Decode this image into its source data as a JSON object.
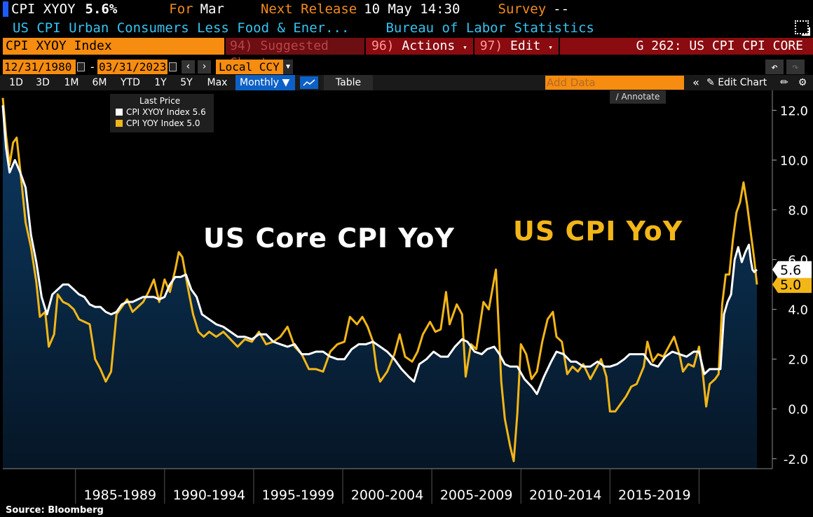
{
  "header": {
    "ticker": "CPI XYOY",
    "last_value": "5.6%",
    "for_label": "For",
    "for_value": "Mar",
    "next_release_label": "Next Release",
    "next_release_value": "10 May 14:30",
    "survey_label": "Survey",
    "survey_value": "--",
    "description": "US CPI Urban Consumers Less Food & Ener...",
    "source_name": "Bureau of Labor Statistics"
  },
  "toolbar": {
    "ticker_input": "CPI XYOY Index",
    "suggested_num": "94)",
    "suggested_label": "Suggested Charts",
    "actions_num": "96)",
    "actions_label": "Actions",
    "edit_num": "97)",
    "edit_label": "Edit",
    "page_title": "G 262: US CPI CPI CORE",
    "start_date": "12/31/1980",
    "end_date": "03/31/2023",
    "currency": "Local CCY",
    "ranges": [
      "1D",
      "3D",
      "1M",
      "6M",
      "YTD",
      "1Y",
      "5Y",
      "Max"
    ],
    "frequency": "Monthly",
    "table_label": "Table",
    "add_data_placeholder": "Add Data",
    "edit_chart_label": "Edit Chart",
    "annotate_label": "Annotate"
  },
  "legend": {
    "header": "Last Price",
    "items": [
      {
        "label": "CPI XYOY Index 5.6",
        "color": "#ffffff"
      },
      {
        "label": "CPI YOY Index  5.0",
        "color": "#f2b618"
      }
    ]
  },
  "overlay": {
    "core_title": "US Core CPI YoY",
    "cpi_title": "US CPI YoY"
  },
  "source": "Source: Bloomberg",
  "colors": {
    "core": "#ffffff",
    "headline": "#f2b618",
    "area_top": "#0c3a63",
    "area_bottom": "#061626",
    "orange": "#f68c10"
  },
  "chart_data": {
    "type": "line",
    "x_tick_labels": [
      "1985-1989",
      "1990-1994",
      "1995-1999",
      "2000-2004",
      "2005-2009",
      "2010-2014",
      "2015-2019"
    ],
    "y_tick_labels": [
      "-2.0",
      "0.0",
      "2.0",
      "4.0",
      "6.0",
      "8.0",
      "10.0",
      "12.0"
    ],
    "ylim": [
      -2.4,
      12.8
    ],
    "x_range": [
      1980.92,
      2023.25
    ],
    "series": [
      {
        "name": "CPI XYOY Index",
        "last": "5.6",
        "color": "#ffffff",
        "area": true,
        "points": [
          [
            1980.92,
            12.2
          ],
          [
            1981.1,
            10.5
          ],
          [
            1981.3,
            9.5
          ],
          [
            1981.6,
            10.0
          ],
          [
            1981.9,
            9.5
          ],
          [
            1982.2,
            8.9
          ],
          [
            1982.5,
            7.0
          ],
          [
            1982.8,
            5.9
          ],
          [
            1983.1,
            4.5
          ],
          [
            1983.4,
            3.8
          ],
          [
            1983.7,
            4.6
          ],
          [
            1984.0,
            4.8
          ],
          [
            1984.3,
            5.0
          ],
          [
            1984.6,
            5.0
          ],
          [
            1984.9,
            4.8
          ],
          [
            1985.2,
            4.6
          ],
          [
            1985.5,
            4.5
          ],
          [
            1985.8,
            4.2
          ],
          [
            1986.1,
            4.1
          ],
          [
            1986.4,
            4.1
          ],
          [
            1986.7,
            3.9
          ],
          [
            1987.0,
            3.8
          ],
          [
            1987.3,
            3.9
          ],
          [
            1987.6,
            4.2
          ],
          [
            1987.9,
            4.3
          ],
          [
            1988.2,
            4.3
          ],
          [
            1988.5,
            4.4
          ],
          [
            1988.8,
            4.5
          ],
          [
            1989.1,
            4.5
          ],
          [
            1989.4,
            4.5
          ],
          [
            1989.7,
            4.4
          ],
          [
            1990.0,
            4.5
          ],
          [
            1990.3,
            5.0
          ],
          [
            1990.6,
            5.3
          ],
          [
            1990.9,
            5.3
          ],
          [
            1991.2,
            5.4
          ],
          [
            1991.5,
            4.8
          ],
          [
            1991.8,
            4.5
          ],
          [
            1992.1,
            3.8
          ],
          [
            1992.5,
            3.6
          ],
          [
            1992.9,
            3.4
          ],
          [
            1993.3,
            3.3
          ],
          [
            1993.7,
            3.1
          ],
          [
            1994.1,
            2.9
          ],
          [
            1994.5,
            2.9
          ],
          [
            1994.9,
            2.8
          ],
          [
            1995.3,
            3.0
          ],
          [
            1995.7,
            3.0
          ],
          [
            1996.1,
            2.7
          ],
          [
            1996.5,
            2.6
          ],
          [
            1996.9,
            2.5
          ],
          [
            1997.3,
            2.6
          ],
          [
            1997.7,
            2.2
          ],
          [
            1998.1,
            2.2
          ],
          [
            1998.5,
            2.3
          ],
          [
            1998.9,
            2.3
          ],
          [
            1999.3,
            2.1
          ],
          [
            1999.7,
            2.0
          ],
          [
            2000.1,
            2.0
          ],
          [
            2000.5,
            2.4
          ],
          [
            2000.9,
            2.6
          ],
          [
            2001.3,
            2.6
          ],
          [
            2001.7,
            2.7
          ],
          [
            2002.1,
            2.5
          ],
          [
            2002.5,
            2.3
          ],
          [
            2002.9,
            2.0
          ],
          [
            2003.3,
            1.6
          ],
          [
            2003.7,
            1.3
          ],
          [
            2004.0,
            1.1
          ],
          [
            2004.3,
            1.8
          ],
          [
            2004.7,
            2.0
          ],
          [
            2005.1,
            2.3
          ],
          [
            2005.5,
            2.1
          ],
          [
            2005.9,
            2.1
          ],
          [
            2006.3,
            2.5
          ],
          [
            2006.7,
            2.8
          ],
          [
            2007.0,
            2.7
          ],
          [
            2007.4,
            2.3
          ],
          [
            2007.8,
            2.2
          ],
          [
            2008.1,
            2.4
          ],
          [
            2008.5,
            2.5
          ],
          [
            2008.8,
            2.2
          ],
          [
            2009.1,
            1.8
          ],
          [
            2009.4,
            1.7
          ],
          [
            2009.8,
            1.7
          ],
          [
            2010.2,
            1.2
          ],
          [
            2010.6,
            0.9
          ],
          [
            2010.9,
            0.6
          ],
          [
            2011.3,
            1.3
          ],
          [
            2011.7,
            1.9
          ],
          [
            2012.0,
            2.3
          ],
          [
            2012.4,
            2.2
          ],
          [
            2012.8,
            1.9
          ],
          [
            2013.1,
            1.9
          ],
          [
            2013.5,
            1.7
          ],
          [
            2013.9,
            1.7
          ],
          [
            2014.3,
            1.9
          ],
          [
            2014.7,
            1.7
          ],
          [
            2015.0,
            1.7
          ],
          [
            2015.4,
            1.8
          ],
          [
            2015.8,
            2.0
          ],
          [
            2016.1,
            2.2
          ],
          [
            2016.5,
            2.2
          ],
          [
            2016.9,
            2.2
          ],
          [
            2017.3,
            1.8
          ],
          [
            2017.7,
            1.7
          ],
          [
            2018.1,
            2.1
          ],
          [
            2018.5,
            2.3
          ],
          [
            2018.9,
            2.2
          ],
          [
            2019.3,
            2.1
          ],
          [
            2019.7,
            2.3
          ],
          [
            2020.0,
            2.3
          ],
          [
            2020.3,
            1.4
          ],
          [
            2020.6,
            1.6
          ],
          [
            2020.9,
            1.6
          ],
          [
            2021.2,
            1.6
          ],
          [
            2021.4,
            3.8
          ],
          [
            2021.6,
            4.3
          ],
          [
            2021.8,
            4.6
          ],
          [
            2022.0,
            6.0
          ],
          [
            2022.2,
            6.5
          ],
          [
            2022.4,
            5.9
          ],
          [
            2022.6,
            6.3
          ],
          [
            2022.8,
            6.6
          ],
          [
            2022.9,
            6.0
          ],
          [
            2023.0,
            5.6
          ],
          [
            2023.1,
            5.5
          ],
          [
            2023.25,
            5.6
          ]
        ]
      },
      {
        "name": "CPI YOY Index",
        "last": "5.0",
        "color": "#f2b618",
        "area": false,
        "points": [
          [
            1980.92,
            12.5
          ],
          [
            1981.1,
            11.0
          ],
          [
            1981.3,
            9.8
          ],
          [
            1981.5,
            10.7
          ],
          [
            1981.7,
            10.9
          ],
          [
            1981.9,
            9.6
          ],
          [
            1982.2,
            7.5
          ],
          [
            1982.5,
            6.5
          ],
          [
            1982.8,
            5.1
          ],
          [
            1983.0,
            3.7
          ],
          [
            1983.3,
            3.9
          ],
          [
            1983.5,
            2.5
          ],
          [
            1983.8,
            3.0
          ],
          [
            1984.0,
            4.6
          ],
          [
            1984.3,
            4.3
          ],
          [
            1984.6,
            4.2
          ],
          [
            1984.9,
            4.0
          ],
          [
            1985.2,
            3.6
          ],
          [
            1985.5,
            3.5
          ],
          [
            1985.8,
            3.4
          ],
          [
            1986.1,
            2.0
          ],
          [
            1986.4,
            1.6
          ],
          [
            1986.7,
            1.1
          ],
          [
            1987.0,
            1.5
          ],
          [
            1987.3,
            3.8
          ],
          [
            1987.6,
            4.1
          ],
          [
            1987.9,
            4.4
          ],
          [
            1988.2,
            3.9
          ],
          [
            1988.5,
            4.1
          ],
          [
            1988.8,
            4.3
          ],
          [
            1989.1,
            4.7
          ],
          [
            1989.4,
            5.2
          ],
          [
            1989.7,
            4.3
          ],
          [
            1990.0,
            5.2
          ],
          [
            1990.3,
            4.7
          ],
          [
            1990.6,
            5.6
          ],
          [
            1990.8,
            6.3
          ],
          [
            1991.0,
            6.1
          ],
          [
            1991.3,
            4.9
          ],
          [
            1991.6,
            3.8
          ],
          [
            1991.9,
            3.1
          ],
          [
            1992.2,
            2.9
          ],
          [
            1992.5,
            3.1
          ],
          [
            1992.9,
            2.9
          ],
          [
            1993.3,
            3.1
          ],
          [
            1993.7,
            2.8
          ],
          [
            1994.1,
            2.5
          ],
          [
            1994.5,
            2.8
          ],
          [
            1994.9,
            2.7
          ],
          [
            1995.3,
            3.1
          ],
          [
            1995.7,
            2.6
          ],
          [
            1996.1,
            2.7
          ],
          [
            1996.5,
            2.9
          ],
          [
            1996.9,
            3.3
          ],
          [
            1997.3,
            2.5
          ],
          [
            1997.7,
            2.2
          ],
          [
            1998.1,
            1.6
          ],
          [
            1998.5,
            1.6
          ],
          [
            1998.9,
            1.5
          ],
          [
            1999.3,
            2.3
          ],
          [
            1999.7,
            2.6
          ],
          [
            2000.1,
            2.7
          ],
          [
            2000.4,
            3.7
          ],
          [
            2000.8,
            3.4
          ],
          [
            2001.1,
            3.7
          ],
          [
            2001.4,
            3.3
          ],
          [
            2001.7,
            2.7
          ],
          [
            2001.9,
            1.6
          ],
          [
            2002.1,
            1.1
          ],
          [
            2002.5,
            1.5
          ],
          [
            2002.9,
            2.2
          ],
          [
            2003.2,
            3.0
          ],
          [
            2003.5,
            2.1
          ],
          [
            2003.9,
            1.9
          ],
          [
            2004.2,
            2.3
          ],
          [
            2004.5,
            3.0
          ],
          [
            2004.9,
            3.5
          ],
          [
            2005.2,
            3.1
          ],
          [
            2005.5,
            3.2
          ],
          [
            2005.8,
            4.7
          ],
          [
            2006.0,
            3.4
          ],
          [
            2006.4,
            4.2
          ],
          [
            2006.7,
            3.8
          ],
          [
            2006.9,
            1.3
          ],
          [
            2007.2,
            2.6
          ],
          [
            2007.5,
            2.4
          ],
          [
            2007.9,
            4.3
          ],
          [
            2008.2,
            4.0
          ],
          [
            2008.6,
            5.6
          ],
          [
            2008.9,
            1.1
          ],
          [
            2009.1,
            -0.4
          ],
          [
            2009.4,
            -1.5
          ],
          [
            2009.6,
            -2.1
          ],
          [
            2009.8,
            -0.2
          ],
          [
            2010.0,
            2.6
          ],
          [
            2010.3,
            2.2
          ],
          [
            2010.6,
            1.2
          ],
          [
            2010.9,
            1.5
          ],
          [
            2011.2,
            2.7
          ],
          [
            2011.5,
            3.6
          ],
          [
            2011.8,
            3.9
          ],
          [
            2012.0,
            2.9
          ],
          [
            2012.3,
            2.7
          ],
          [
            2012.6,
            1.4
          ],
          [
            2012.9,
            1.7
          ],
          [
            2013.2,
            1.5
          ],
          [
            2013.5,
            1.8
          ],
          [
            2013.9,
            1.2
          ],
          [
            2014.2,
            1.6
          ],
          [
            2014.5,
            2.0
          ],
          [
            2014.8,
            1.3
          ],
          [
            2015.0,
            -0.1
          ],
          [
            2015.3,
            -0.1
          ],
          [
            2015.6,
            0.2
          ],
          [
            2015.9,
            0.5
          ],
          [
            2016.2,
            0.9
          ],
          [
            2016.5,
            1.0
          ],
          [
            2016.9,
            1.7
          ],
          [
            2017.1,
            2.7
          ],
          [
            2017.4,
            1.9
          ],
          [
            2017.7,
            2.2
          ],
          [
            2018.0,
            2.1
          ],
          [
            2018.3,
            2.5
          ],
          [
            2018.6,
            2.9
          ],
          [
            2018.9,
            2.2
          ],
          [
            2019.1,
            1.5
          ],
          [
            2019.4,
            1.8
          ],
          [
            2019.7,
            1.7
          ],
          [
            2020.0,
            2.5
          ],
          [
            2020.2,
            1.5
          ],
          [
            2020.4,
            0.1
          ],
          [
            2020.6,
            1.0
          ],
          [
            2020.9,
            1.2
          ],
          [
            2021.1,
            1.4
          ],
          [
            2021.3,
            4.2
          ],
          [
            2021.5,
            5.4
          ],
          [
            2021.7,
            5.4
          ],
          [
            2021.9,
            6.8
          ],
          [
            2022.1,
            7.9
          ],
          [
            2022.3,
            8.3
          ],
          [
            2022.5,
            9.1
          ],
          [
            2022.7,
            8.2
          ],
          [
            2022.9,
            7.1
          ],
          [
            2023.1,
            6.0
          ],
          [
            2023.25,
            5.0
          ]
        ]
      }
    ]
  }
}
